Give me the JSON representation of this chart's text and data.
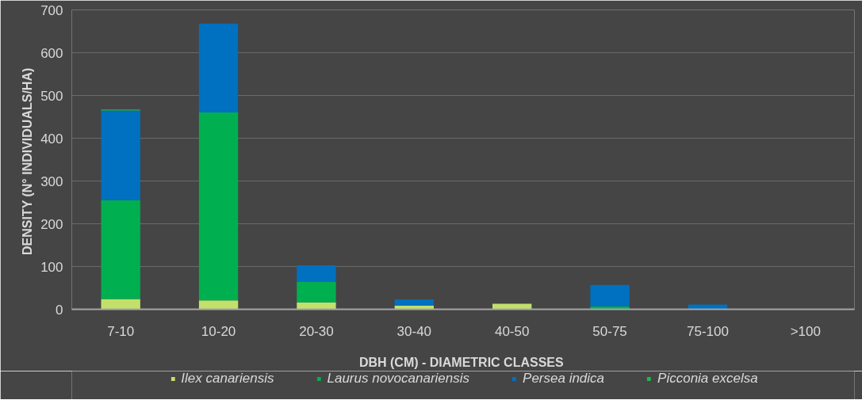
{
  "chart_data": {
    "type": "bar",
    "stacked": true,
    "xlabel": "DBH (CM)  - DIAMETRIC CLASSES",
    "ylabel": "DENSITY  (N° INDIVIDUALS/HA)",
    "categories": [
      "7-10",
      "10-20",
      "20-30",
      "30-40",
      "40-50",
      "50-75",
      "75-100",
      ">100"
    ],
    "series": [
      {
        "name": "Ilex canariensis",
        "color": "#c3e06a",
        "values": [
          24,
          21,
          16,
          9,
          13,
          0,
          0,
          0
        ]
      },
      {
        "name": "Laurus novocanariensis",
        "color": "#00b050",
        "values": [
          231,
          439,
          49,
          0,
          0,
          7,
          0,
          0
        ]
      },
      {
        "name": "Persea indica",
        "color": "#0070c0",
        "values": [
          210,
          208,
          38,
          14,
          0,
          50,
          11,
          0
        ]
      },
      {
        "name": "Picconia excelsa",
        "color": "#1fb84a",
        "values": [
          2,
          0,
          0,
          0,
          0,
          0,
          0,
          0
        ]
      }
    ],
    "ylim": [
      0,
      700
    ],
    "yticks": [
      0,
      100,
      200,
      300,
      400,
      500,
      600,
      700
    ],
    "grid": "y",
    "legend": "bottom"
  }
}
